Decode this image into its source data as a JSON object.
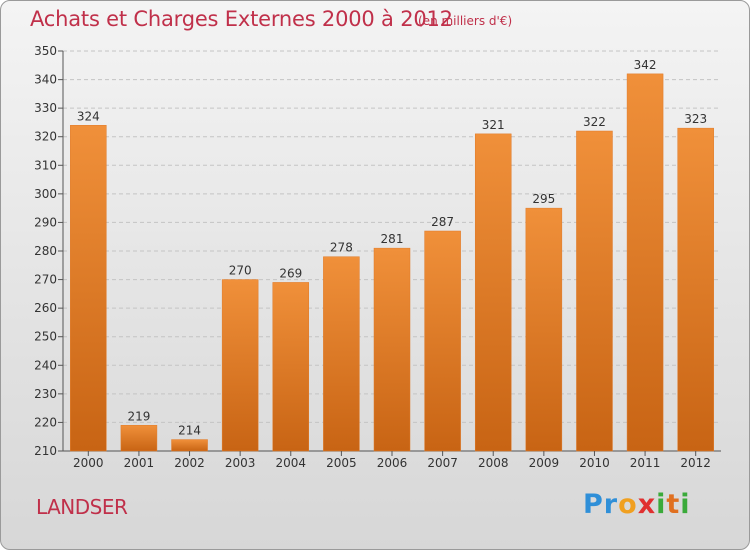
{
  "chart_data": {
    "type": "bar",
    "title": "Achats et Charges Externes 2000 à 2012",
    "subtitle": "(en milliers d'€)",
    "categories": [
      "2000",
      "2001",
      "2002",
      "2003",
      "2004",
      "2005",
      "2006",
      "2007",
      "2008",
      "2009",
      "2010",
      "2011",
      "2012"
    ],
    "values": [
      324,
      219,
      214,
      270,
      269,
      278,
      281,
      287,
      321,
      295,
      322,
      342,
      323
    ],
    "ylim": [
      210,
      350
    ],
    "yticks": [
      210,
      220,
      230,
      240,
      250,
      260,
      270,
      280,
      290,
      300,
      310,
      320,
      330,
      340,
      350
    ],
    "grid": true,
    "bar_color": "#f0903a",
    "bar_color_dark": "#c86414"
  },
  "location": "LANDSER",
  "logo": {
    "letters": [
      {
        "ch": "P",
        "color": "#2f8fd8"
      },
      {
        "ch": "r",
        "color": "#2f8fd8"
      },
      {
        "ch": "o",
        "color": "#f0a020"
      },
      {
        "ch": "x",
        "color": "#e03030"
      },
      {
        "ch": "i",
        "color": "#3aaa3a"
      },
      {
        "ch": "t",
        "color": "#e07020"
      },
      {
        "ch": "i",
        "color": "#3aaa3a"
      }
    ]
  },
  "colors": {
    "accent": "#c0304a"
  }
}
